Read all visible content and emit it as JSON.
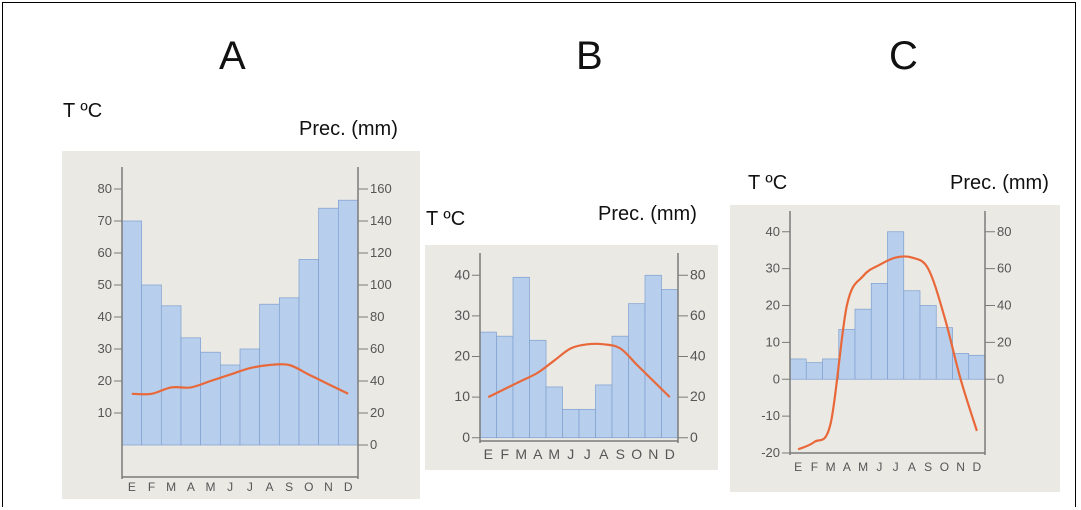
{
  "charts": [
    {
      "letter": "A",
      "temp_label": "T ºC",
      "prec_label": "Prec. (mm)",
      "chart_data": {
        "type": "bar",
        "categories": [
          "E",
          "F",
          "M",
          "A",
          "M",
          "J",
          "J",
          "A",
          "S",
          "O",
          "N",
          "D"
        ],
        "series": [
          {
            "values": [
              140,
              100,
              87,
              67,
              58,
              50,
              60,
              88,
              92,
              116,
              148,
              153
            ],
            "axis": "right"
          },
          {
            "values": [
              16,
              16,
              18,
              18,
              20,
              22,
              24,
              25,
              25,
              22,
              19,
              16
            ],
            "axis": "left"
          }
        ],
        "left_axis": {
          "ticks": [
            10,
            20,
            30,
            40,
            50,
            60,
            70,
            80
          ],
          "range": [
            0,
            85
          ]
        },
        "right_axis": {
          "ticks": [
            0,
            20,
            40,
            60,
            80,
            100,
            120,
            140,
            160
          ],
          "range": [
            0,
            170
          ]
        }
      }
    },
    {
      "letter": "B",
      "temp_label": "T ºC",
      "prec_label": "Prec. (mm)",
      "chart_data": {
        "type": "bar",
        "categories": [
          "E",
          "F",
          "M",
          "A",
          "M",
          "J",
          "J",
          "A",
          "S",
          "O",
          "N",
          "D"
        ],
        "series": [
          {
            "values": [
              52,
              50,
              79,
              48,
              25,
              14,
              14,
              26,
              50,
              66,
              80,
              73
            ],
            "axis": "right"
          },
          {
            "values": [
              10,
              12,
              14,
              16,
              19,
              22,
              23,
              23,
              22,
              18,
              14,
              10
            ],
            "axis": "left"
          }
        ],
        "left_axis": {
          "ticks": [
            0,
            10,
            20,
            30,
            40
          ],
          "range": [
            0,
            45
          ]
        },
        "right_axis": {
          "ticks": [
            0,
            20,
            40,
            60,
            80
          ],
          "range": [
            0,
            90
          ]
        }
      }
    },
    {
      "letter": "C",
      "temp_label": "T ºC",
      "prec_label": "Prec. (mm)",
      "chart_data": {
        "type": "bar",
        "categories": [
          "E",
          "F",
          "M",
          "A",
          "M",
          "J",
          "J",
          "A",
          "S",
          "O",
          "N",
          "D"
        ],
        "series": [
          {
            "values": [
              11,
              9,
              11,
              27,
              38,
              52,
              80,
              48,
              40,
              28,
              14,
              13
            ],
            "axis": "right"
          },
          {
            "values": [
              -19,
              -17,
              -12,
              20,
              28,
              31,
              33,
              33,
              30,
              17,
              0,
              -14
            ],
            "axis": "left"
          }
        ],
        "left_axis": {
          "ticks": [
            -20,
            -10,
            0,
            10,
            20,
            30,
            40
          ],
          "range": [
            -20,
            45
          ]
        },
        "right_axis": {
          "ticks": [
            0,
            20,
            40,
            60,
            80
          ],
          "range": [
            -40,
            90
          ]
        }
      }
    }
  ],
  "colors": {
    "bar_fill": "#b7cfec",
    "bar_stroke": "#7e9fcf",
    "temp_line": "#e8683a",
    "axis": "#7a7a7a",
    "paper": "#ebe9e4",
    "text": "#555555"
  }
}
